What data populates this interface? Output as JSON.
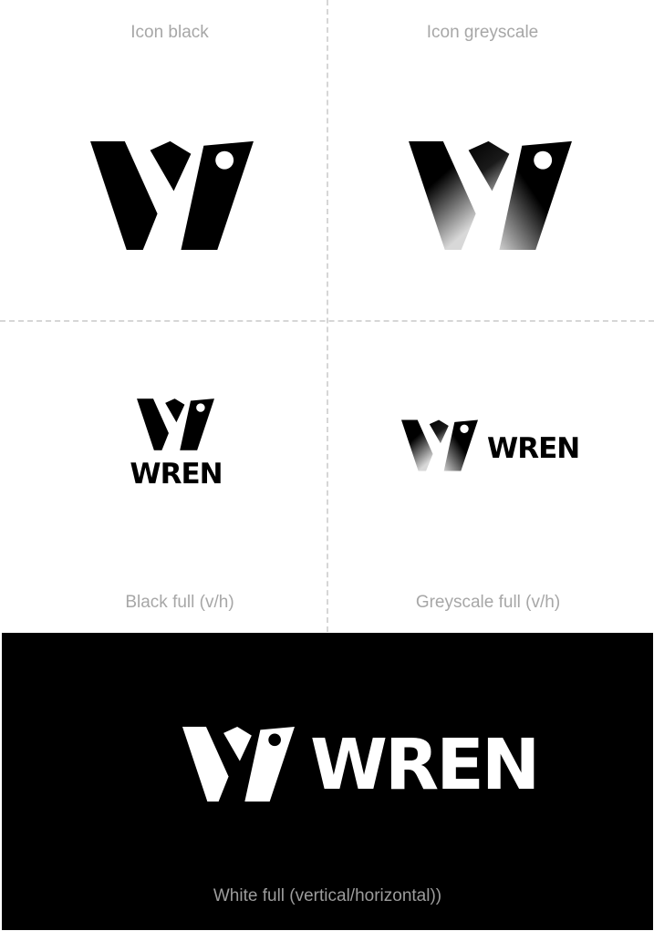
{
  "captions": {
    "icon_black": "Icon black",
    "icon_greyscale": "Icon greyscale",
    "black_full": "Black full (v/h)",
    "greyscale_full": "Greyscale full (v/h)",
    "white_full": "White full (vertical/horizontal))"
  },
  "brand": {
    "name": "WREN",
    "icon": "wren-w-bird-icon",
    "colors": {
      "black": "#000000",
      "white": "#ffffff",
      "caption_grey": "#a7a7a7",
      "divider": "#d6d6d6"
    }
  }
}
